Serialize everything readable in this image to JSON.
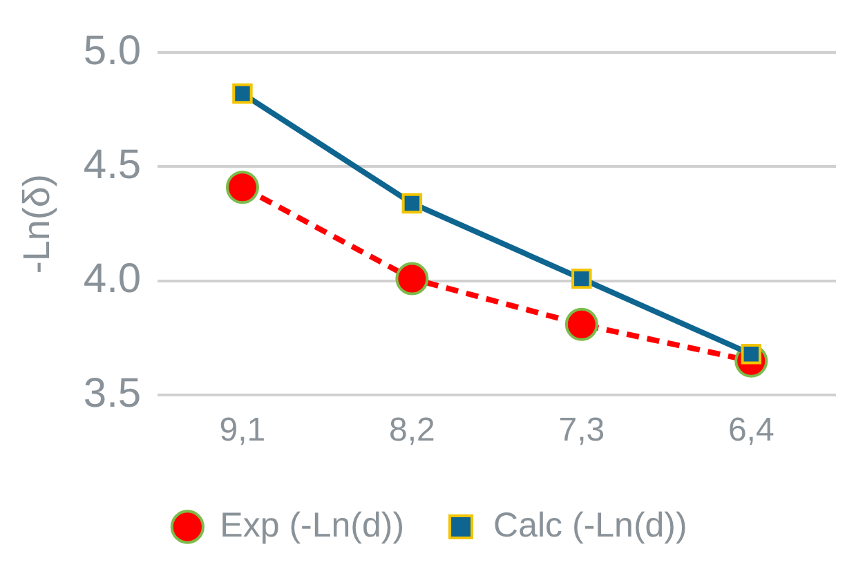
{
  "chart_data": {
    "type": "line",
    "ylabel": "-Ln(δ)",
    "categories": [
      "9,1",
      "8,2",
      "7,3",
      "6,4"
    ],
    "series": [
      {
        "name": "Exp (-Ln(d))",
        "color": "#ff0000",
        "values": [
          4.41,
          4.01,
          3.81,
          3.65
        ],
        "marker": "circle",
        "line_style": "dashed"
      },
      {
        "name": "Calc (-Ln(d))",
        "color": "#0e6590",
        "values": [
          4.82,
          4.34,
          4.01,
          3.68
        ],
        "marker": "square",
        "line_style": "solid"
      }
    ],
    "ylim": [
      3.5,
      5.0
    ],
    "yticks": [
      3.5,
      {
        "value": 4,
        "label": "4.0"
      },
      4.5,
      {
        "value": 5,
        "label": "5.0"
      }
    ],
    "grid": "y",
    "legend": "bottom"
  }
}
